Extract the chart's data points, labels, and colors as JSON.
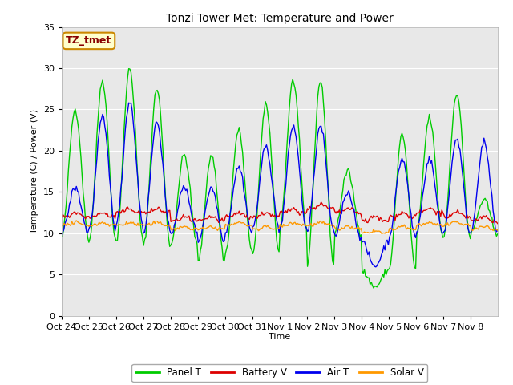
{
  "title": "Tonzi Tower Met: Temperature and Power",
  "xlabel": "Time",
  "ylabel": "Temperature (C) / Power (V)",
  "ylim": [
    0,
    35
  ],
  "annotation_text": "TZ_tmet",
  "xtick_labels": [
    "Oct 24",
    "Oct 25",
    "Oct 26",
    "Oct 27",
    "Oct 28",
    "Oct 29",
    "Oct 30",
    "Oct 31",
    "Nov 1",
    "Nov 2",
    "Nov 3",
    "Nov 4",
    "Nov 5",
    "Nov 6",
    "Nov 7",
    "Nov 8"
  ],
  "colors": {
    "panel_t": "#00cc00",
    "battery_v": "#dd0000",
    "air_t": "#0000ee",
    "solar_v": "#ff9900"
  },
  "legend_labels": [
    "Panel T",
    "Battery V",
    "Air T",
    "Solar V"
  ],
  "plot_bg": "#e8e8e8",
  "fig_bg": "#ffffff",
  "grid_color": "#ffffff",
  "panel_peak": [
    25,
    28.5,
    30,
    27.5,
    19.5,
    19.5,
    22.5,
    25.5,
    28.5,
    28.5,
    17.5,
    3.5,
    22,
    24,
    27,
    14
  ],
  "panel_trough": [
    9.5,
    9,
    9,
    8.5,
    8.5,
    6.5,
    7.5,
    7.5,
    10.5,
    6,
    10,
    5.5,
    5.5,
    9.5,
    9.5,
    10
  ],
  "air_peak": [
    15.5,
    24,
    26,
    23.5,
    15.5,
    15.5,
    18,
    20.5,
    23,
    23,
    15,
    6,
    19,
    19,
    21.5,
    21
  ],
  "air_trough": [
    10,
    10.5,
    11,
    10,
    10,
    9,
    10,
    10.5,
    10.5,
    10,
    9.5,
    9,
    9.5,
    10,
    10,
    10
  ],
  "batt_base": [
    12,
    12,
    12.5,
    12.5,
    11.5,
    11.5,
    12,
    12,
    12.5,
    13,
    12.5,
    11.5,
    12,
    12.5,
    12,
    11.5
  ],
  "solar_base": [
    11,
    11,
    11,
    11,
    10.5,
    10.5,
    11,
    10.5,
    11,
    11,
    10.5,
    10,
    10.5,
    11,
    11,
    10.5
  ]
}
